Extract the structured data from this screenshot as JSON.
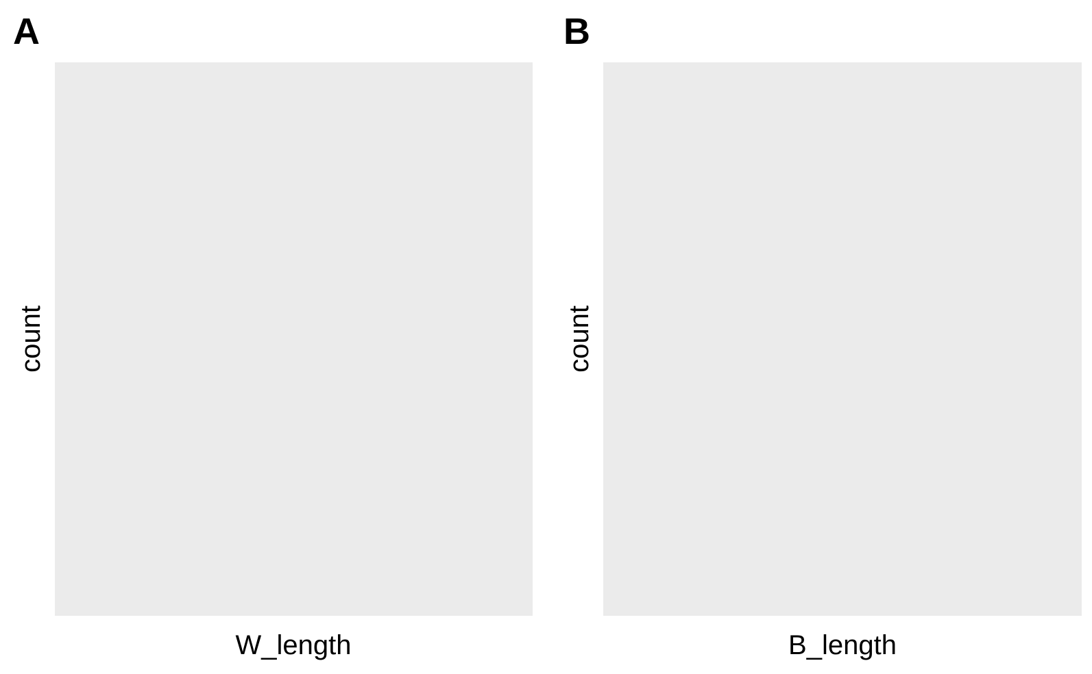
{
  "chart_data": [
    {
      "type": "bar",
      "panel_tag": "A",
      "xlabel": "W_length",
      "ylabel": "count",
      "categories": [],
      "values": [],
      "panel_background": "#EBEBEB",
      "grid": false,
      "legend": "none"
    },
    {
      "type": "bar",
      "panel_tag": "B",
      "xlabel": "B_length",
      "ylabel": "count",
      "categories": [],
      "values": [],
      "panel_background": "#EBEBEB",
      "grid": false,
      "legend": "none"
    }
  ]
}
